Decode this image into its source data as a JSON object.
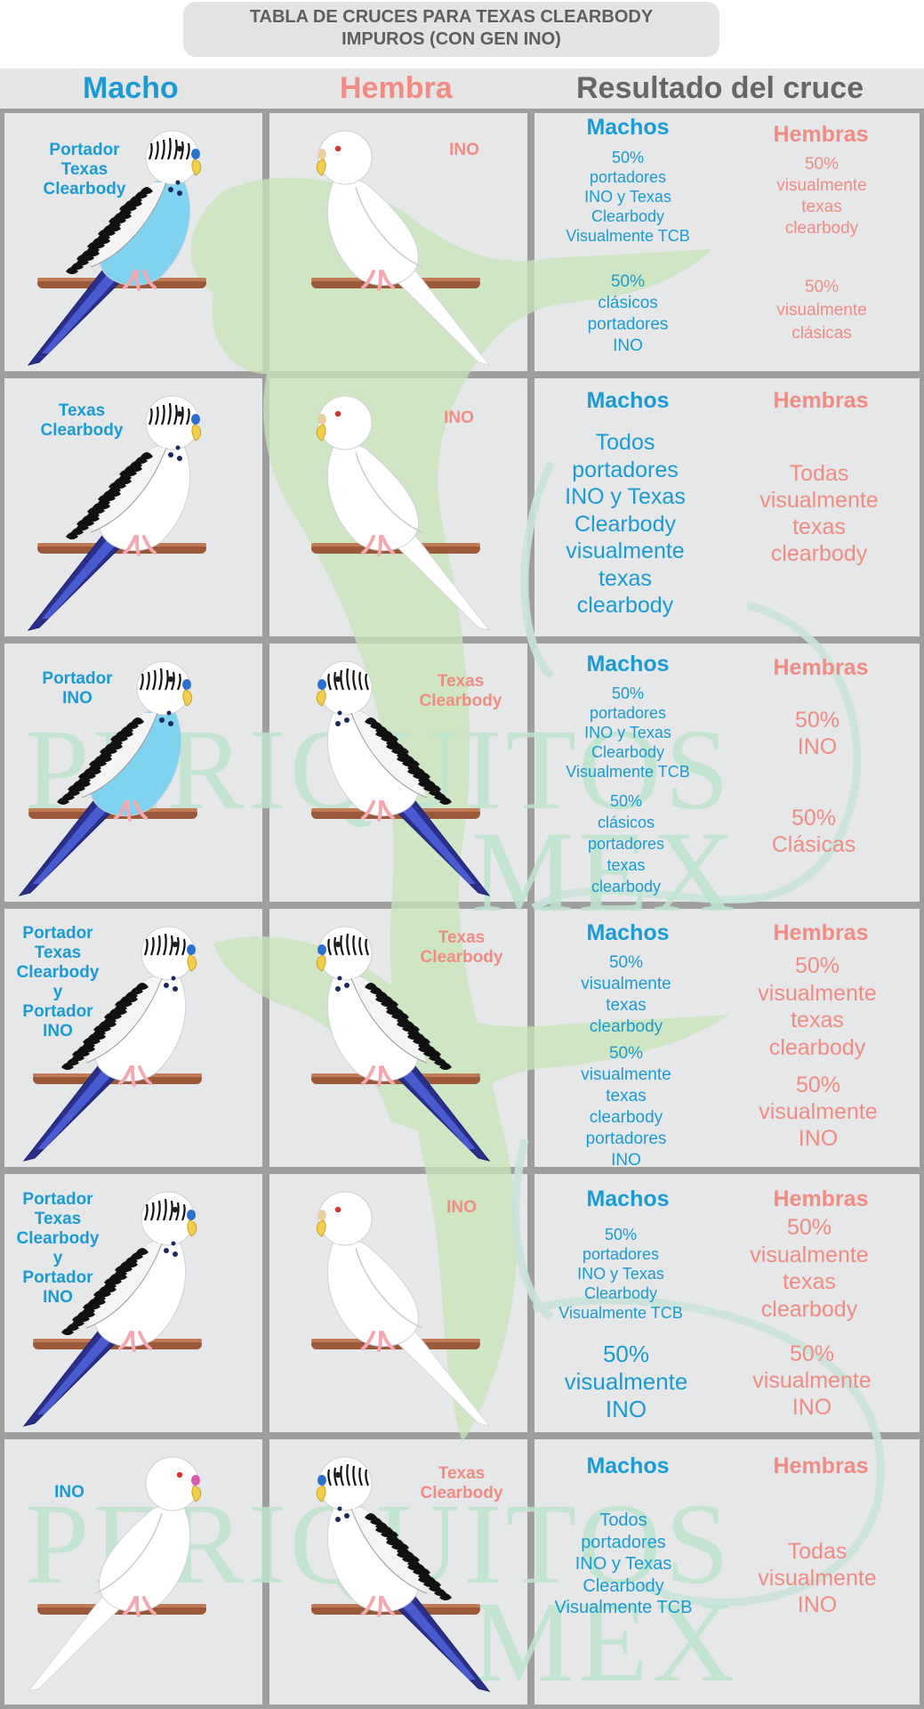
{
  "title": {
    "line1": "TABLA DE CRUCES PARA TEXAS CLEARBODY",
    "line2": "IMPUROS (CON GEN INO)"
  },
  "headers": {
    "male": "Macho",
    "female": "Hembra",
    "result": "Resultado del cruce"
  },
  "watermark": {
    "line1": "PERIQUITOS",
    "line2": "MEX"
  },
  "rows": [
    {
      "male_label": "Portador\nTexas\nClearbody",
      "female_label": "INO",
      "males_header": "Machos",
      "females_header": "Hembras",
      "males_result_1": "50%\nportadores\nINO y Texas\nClearbody\nVisualmente TCB",
      "males_result_2": "50%\nclásicos\nportadores\nINO",
      "females_result_1": "50%\nvisualmente\ntexas\nclearbody",
      "females_result_2": "50%\nvisualmente\nclásicas"
    },
    {
      "male_label": "Texas\nClearbody",
      "female_label": "INO",
      "males_header": "Machos",
      "females_header": "Hembras",
      "males_result_1": "Todos\nportadores\nINO y Texas\nClearbody\nvisualmente\ntexas\nclearbody",
      "females_result_1": "Todas\nvisualmente\ntexas\nclearbody"
    },
    {
      "male_label": "Portador\nINO",
      "female_label": "Texas\nClearbody",
      "males_header": "Machos",
      "females_header": "Hembras",
      "males_result_1": "50%\nportadores\nINO y Texas\nClearbody\nVisualmente TCB",
      "males_result_2": "50%\nclásicos\nportadores\ntexas\nclearbody",
      "females_result_1": "50%\nINO",
      "females_result_2": "50%\nClásicas"
    },
    {
      "male_label": "Portador\nTexas\nClearbody\ny\nPortador\nINO",
      "female_label": "Texas\nClearbody",
      "males_header": "Machos",
      "females_header": "Hembras",
      "males_result_1": "50%\nvisualmente\ntexas\nclearbody",
      "males_result_2": "50%\nvisualmente\ntexas\nclearbody\nportadores\nINO",
      "females_result_1": "50%\nvisualmente\ntexas\nclearbody",
      "females_result_2": "50%\nvisualmente\nINO"
    },
    {
      "male_label": "Portador\nTexas\nClearbody\ny\nPortador\nINO",
      "female_label": "INO",
      "males_header": "Machos",
      "females_header": "Hembras",
      "males_result_1": "50%\nportadores\nINO y Texas\nClearbody\nVisualmente TCB",
      "males_result_2": "50%\nvisualmente\nINO",
      "females_result_1": "50%\nvisualmente\ntexas\nclearbody",
      "females_result_2": "50%\nvisualmente\nINO"
    },
    {
      "male_label": "INO",
      "female_label": "Texas\nClearbody",
      "males_header": "Machos",
      "females_header": "Hembras",
      "males_result_1": "Todos\nportadores\nINO y Texas\nClearbody\nVisualmente TCB",
      "females_result_1": "Todas\nvisualmente\nINO"
    }
  ],
  "colors": {
    "male_blue": "#1b9bd5",
    "female_pink": "#f28b82",
    "header_gray": "#666666",
    "cell_bg": "#e6e7e8",
    "grid_line": "#9e9e9e",
    "watermark_green": "#bfe4cf"
  }
}
